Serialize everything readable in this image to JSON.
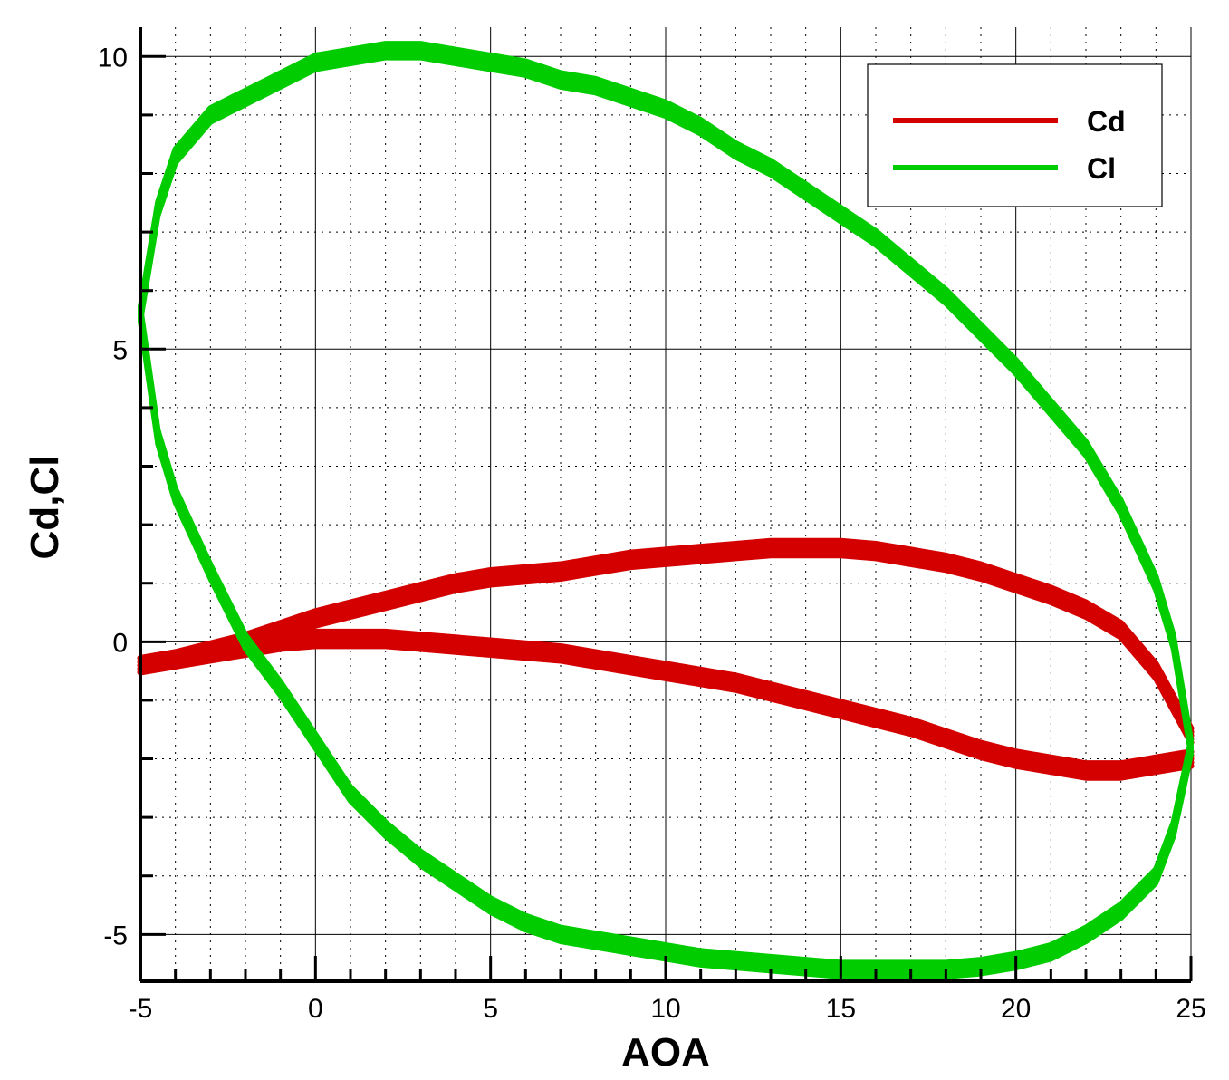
{
  "chart_data": {
    "type": "line",
    "xlabel": "AOA",
    "ylabel": "Cd,Cl",
    "xlim": [
      -5,
      25
    ],
    "ylim": [
      -5.8,
      10.5
    ],
    "x_ticks": [
      -5,
      0,
      5,
      10,
      15,
      20,
      25
    ],
    "y_ticks": [
      -5,
      0,
      5,
      10
    ],
    "x_minor_step": 1,
    "y_minor_step": 1,
    "grid": true,
    "legend_position": "top-right",
    "series": [
      {
        "name": "Cd",
        "color": "#d40000",
        "loops": [
          {
            "note": "upper (increasing AOA) branch",
            "x": [
              -5,
              -4,
              -3,
              -2,
              -1,
              0,
              1,
              2,
              3,
              4,
              5,
              6,
              7,
              8,
              9,
              10,
              11,
              12,
              13,
              14,
              15,
              16,
              17,
              18,
              19,
              20,
              21,
              22,
              23,
              24,
              25
            ],
            "y": [
              -0.4,
              -0.3,
              -0.15,
              0.0,
              0.2,
              0.4,
              0.55,
              0.7,
              0.85,
              1.0,
              1.1,
              1.15,
              1.2,
              1.3,
              1.4,
              1.45,
              1.5,
              1.55,
              1.6,
              1.6,
              1.6,
              1.55,
              1.45,
              1.35,
              1.2,
              1.0,
              0.8,
              0.55,
              0.2,
              -0.5,
              -1.6
            ]
          },
          {
            "note": "lower (decreasing AOA) branch",
            "x": [
              25,
              24,
              23,
              22,
              21,
              20,
              19,
              18,
              17,
              16,
              15,
              14,
              13,
              12,
              11,
              10,
              9,
              8,
              7,
              6,
              5,
              4,
              3,
              2,
              1,
              0,
              -1,
              -2,
              -3,
              -4,
              -5
            ],
            "y": [
              -2.0,
              -2.1,
              -2.2,
              -2.2,
              -2.1,
              -2.0,
              -1.85,
              -1.65,
              -1.45,
              -1.3,
              -1.15,
              -1.0,
              -0.85,
              -0.7,
              -0.6,
              -0.5,
              -0.4,
              -0.3,
              -0.2,
              -0.15,
              -0.1,
              -0.05,
              0.0,
              0.05,
              0.05,
              0.05,
              0.0,
              -0.1,
              -0.2,
              -0.3,
              -0.4
            ]
          }
        ]
      },
      {
        "name": "Cl",
        "color": "#00cc00",
        "loops": [
          {
            "note": "upper (decreasing AOA) branch",
            "x": [
              25,
              24.5,
              24,
              23,
              22,
              21,
              20,
              19,
              18,
              17,
              16,
              15,
              14,
              13,
              12,
              11,
              10,
              9,
              8,
              7,
              6,
              5,
              4,
              3,
              2,
              1,
              0,
              -1,
              -2,
              -3,
              -4,
              -4.5,
              -5
            ],
            "y": [
              -1.8,
              0.0,
              1.0,
              2.3,
              3.3,
              4.0,
              4.7,
              5.3,
              5.9,
              6.4,
              6.9,
              7.3,
              7.7,
              8.1,
              8.4,
              8.8,
              9.1,
              9.3,
              9.5,
              9.6,
              9.8,
              9.9,
              10.0,
              10.1,
              10.1,
              10.0,
              9.9,
              9.6,
              9.3,
              9.0,
              8.3,
              7.4,
              5.6
            ]
          },
          {
            "note": "lower (increasing AOA) branch",
            "x": [
              -5,
              -4.5,
              -4,
              -3,
              -2,
              -1,
              0,
              1,
              2,
              3,
              4,
              5,
              6,
              7,
              8,
              9,
              10,
              11,
              12,
              13,
              14,
              15,
              16,
              17,
              18,
              19,
              20,
              21,
              22,
              23,
              24,
              24.5,
              25
            ],
            "y": [
              5.6,
              3.5,
              2.5,
              1.2,
              0.0,
              -0.8,
              -1.7,
              -2.6,
              -3.2,
              -3.7,
              -4.1,
              -4.5,
              -4.8,
              -5.0,
              -5.1,
              -5.2,
              -5.3,
              -5.4,
              -5.45,
              -5.5,
              -5.55,
              -5.6,
              -5.6,
              -5.6,
              -5.6,
              -5.55,
              -5.45,
              -5.3,
              -5.0,
              -4.6,
              -4.0,
              -3.2,
              -1.8
            ]
          }
        ]
      }
    ]
  }
}
